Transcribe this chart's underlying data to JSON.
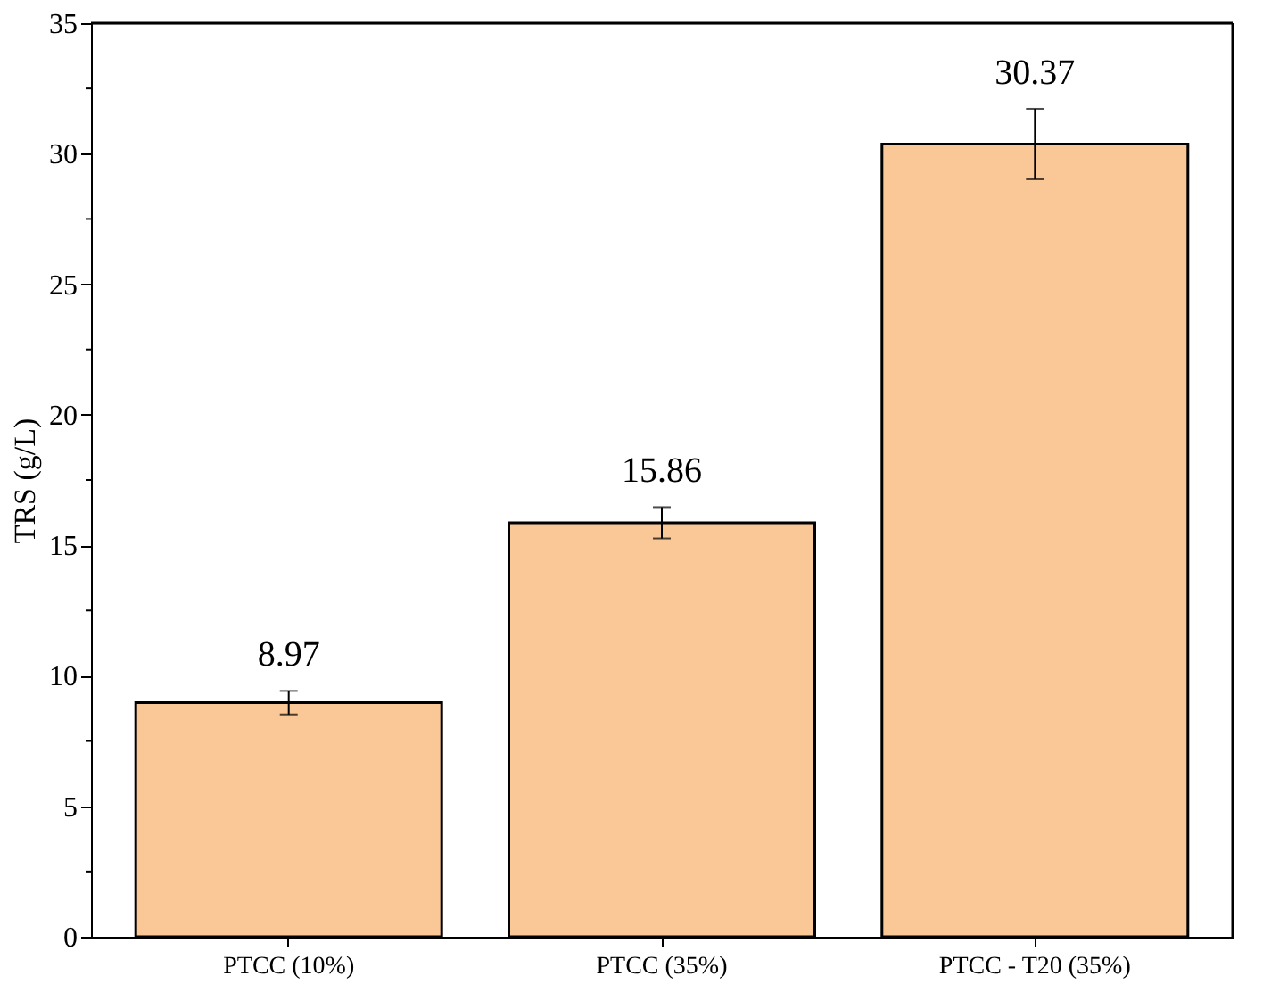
{
  "chart_data": {
    "type": "bar",
    "ylabel": "TRS (g/L)",
    "categories": [
      "PTCC (10%)",
      "PTCC (35%)",
      "PTCC - T20 (35%)"
    ],
    "values": [
      8.97,
      15.86,
      30.37
    ],
    "errors": [
      0.45,
      0.6,
      1.35
    ],
    "color": "#f9c896",
    "data_labels": true,
    "ylim": [
      0,
      35
    ],
    "yticks": [
      0,
      {
        "value": 2.5,
        "label": null
      },
      5,
      {
        "value": 7.5,
        "label": null
      },
      10,
      {
        "value": 12.5,
        "label": null
      },
      15,
      {
        "value": 17.5,
        "label": null
      },
      20,
      {
        "value": 22.5,
        "label": null
      },
      25,
      {
        "value": 27.5,
        "label": null
      },
      30,
      {
        "value": 32.5,
        "label": null
      },
      35
    ],
    "grid": false
  }
}
